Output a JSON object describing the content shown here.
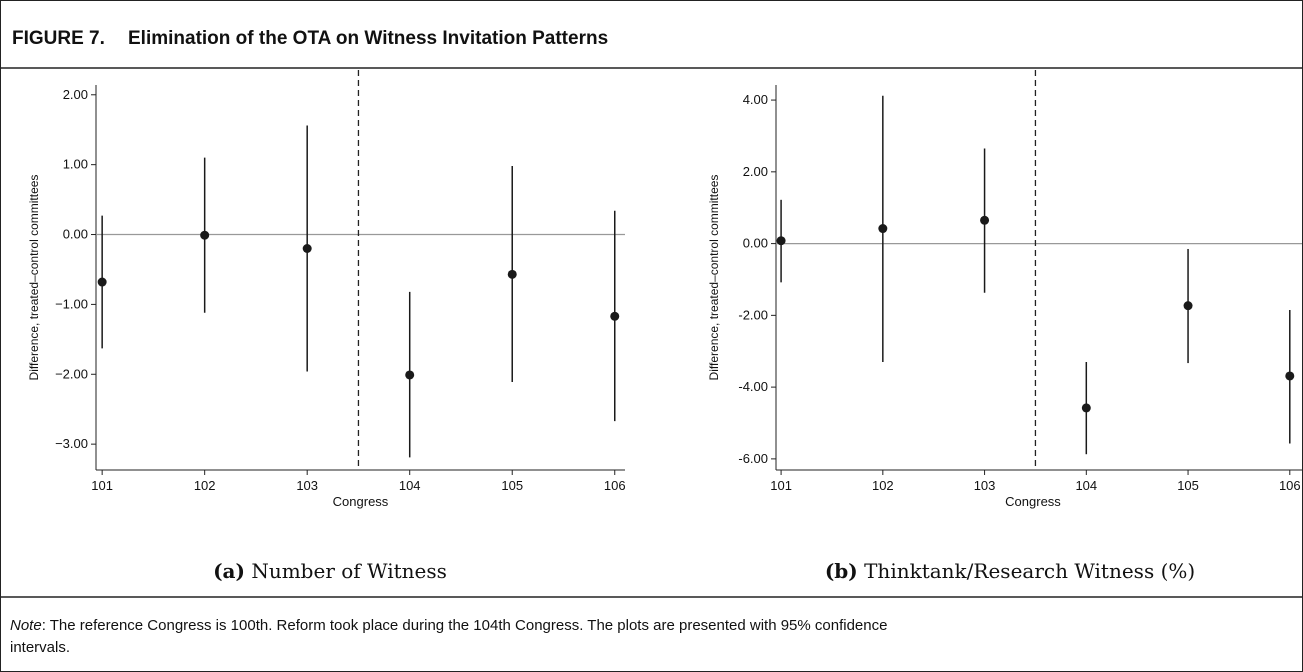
{
  "figure": {
    "label": "FIGURE 7.",
    "title": "Elimination of the OTA on Witness Invitation Patterns",
    "note_label": "Note",
    "note_line1": ": The reference Congress is 100th. Reform took place during the 104th Congress. The plots are presented with 95% confidence",
    "note_line2": "intervals."
  },
  "chart_data": [
    {
      "type": "errorbar",
      "caption_label": "(a)",
      "caption": "Number of Witness",
      "xlabel": "Congress",
      "ylabel": "Difference, treated–control committees",
      "x": [
        101,
        102,
        103,
        104,
        105,
        106
      ],
      "values": [
        -0.68,
        -0.01,
        -0.2,
        -2.01,
        -0.57,
        -1.17
      ],
      "lower": [
        -1.63,
        -1.12,
        -1.96,
        -3.19,
        -2.11,
        -2.67
      ],
      "upper": [
        0.27,
        1.1,
        1.56,
        -0.82,
        0.98,
        0.34
      ],
      "color": "#1a1a1a",
      "xlim": [
        100.94,
        106.1
      ],
      "ylim": [
        -3.37,
        2.14
      ],
      "xticks": [
        101,
        102,
        103,
        104,
        105,
        106
      ],
      "yticks": [
        {
          "value": 2,
          "label": "2.00"
        },
        {
          "value": 1,
          "label": "1.00"
        },
        {
          "value": 0,
          "label": "0.00"
        },
        {
          "value": -1,
          "label": "−1.00"
        },
        {
          "value": -2,
          "label": "−2.00"
        },
        {
          "value": -3,
          "label": "−3.00"
        }
      ],
      "hline": 0,
      "vline": 103.5
    },
    {
      "type": "errorbar",
      "caption_label": "(b)",
      "caption": "Thinktank/Research Witness (%)",
      "xlabel": "Congress",
      "ylabel": "Difference, treated–control committees",
      "x": [
        101,
        102,
        103,
        104,
        105,
        106
      ],
      "values": [
        0.08,
        0.42,
        0.65,
        -4.58,
        -1.73,
        -3.69
      ],
      "lower": [
        -1.08,
        -3.3,
        -1.37,
        -5.87,
        -3.33,
        -5.57
      ],
      "upper": [
        1.22,
        4.12,
        2.65,
        -3.3,
        -0.15,
        -1.85
      ],
      "color": "#1a1a1a",
      "xlim": [
        100.95,
        106.12
      ],
      "ylim": [
        -6.31,
        4.42
      ],
      "xticks": [
        101,
        102,
        103,
        104,
        105,
        106
      ],
      "yticks": [
        {
          "value": 4,
          "label": "4.00"
        },
        {
          "value": 2,
          "label": "2.00"
        },
        {
          "value": 0,
          "label": "0.00"
        },
        {
          "value": -2,
          "label": "-2.00"
        },
        {
          "value": -4,
          "label": "-4.00"
        },
        {
          "value": -6,
          "label": "-6.00"
        }
      ],
      "hline": 0,
      "vline": 103.5
    }
  ]
}
